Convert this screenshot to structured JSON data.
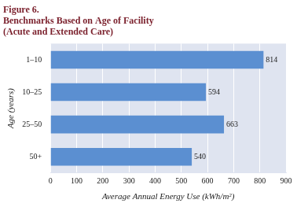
{
  "chart_data": {
    "type": "bar",
    "orientation": "horizontal",
    "title": [
      "Figure 6.",
      "Benchmarks Based on Age of Facility",
      "(Acute and Extended Care)"
    ],
    "categories": [
      "1–10",
      "10–25",
      "25–50",
      "50+"
    ],
    "values": [
      814,
      594,
      663,
      540
    ],
    "color": "#5b8fd1",
    "xlabel": "Average Annual Energy Use (kWh/m²)",
    "ylabel": "Age (years)",
    "xlim": [
      0,
      900
    ],
    "xticks": [
      0,
      100,
      200,
      300,
      400,
      500,
      600,
      700,
      800,
      900
    ],
    "grid": true,
    "data_labels": true
  }
}
